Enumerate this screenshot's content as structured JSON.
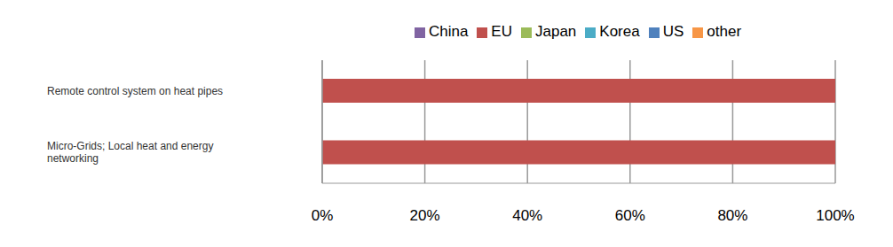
{
  "chart_data": {
    "type": "bar",
    "orientation": "horizontal",
    "stacked": true,
    "grid": true,
    "legend": "top",
    "categories": [
      "Remote control system on heat pipes",
      "Micro-Grids; Local heat and energy networking"
    ],
    "series": [
      {
        "name": "US",
        "color": "#4f81bd",
        "values": [
          0,
          0
        ]
      },
      {
        "name": "EU",
        "color": "#c0504d",
        "values": [
          100,
          100
        ]
      },
      {
        "name": "Japan",
        "color": "#9bbb59",
        "values": [
          0,
          0
        ]
      },
      {
        "name": "China",
        "color": "#8064a2",
        "values": [
          0,
          0
        ]
      },
      {
        "name": "Korea",
        "color": "#4bacc6",
        "values": [
          0,
          0
        ]
      },
      {
        "name": "other",
        "color": "#f79646",
        "values": [
          0,
          0
        ]
      }
    ],
    "xlim": [
      0,
      100
    ],
    "xticks": [
      {
        "value": 0,
        "label": "0%"
      },
      {
        "value": 20,
        "label": "20%"
      },
      {
        "value": 40,
        "label": "40%"
      },
      {
        "value": 60,
        "label": "60%"
      },
      {
        "value": 80,
        "label": "80%"
      },
      {
        "value": 100,
        "label": "100%"
      }
    ]
  }
}
